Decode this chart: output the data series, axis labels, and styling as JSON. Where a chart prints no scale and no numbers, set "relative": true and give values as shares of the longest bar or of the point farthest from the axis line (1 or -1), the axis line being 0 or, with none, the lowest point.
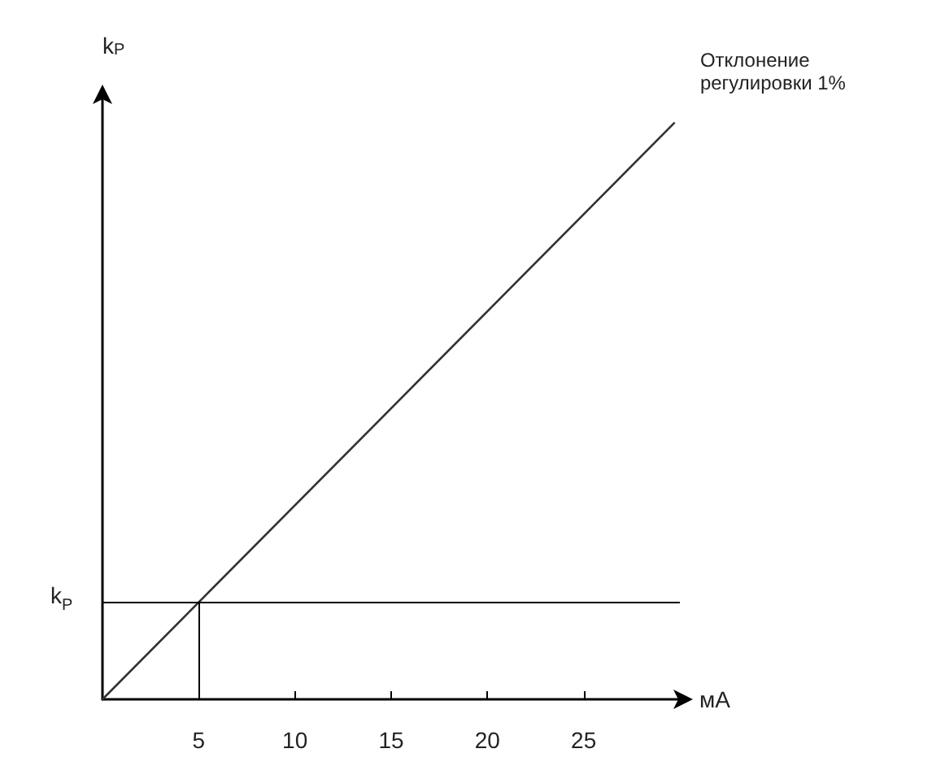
{
  "chart_data": {
    "type": "line",
    "relative": true,
    "ylabel": "k$_{P}$",
    "xlabel": "мА",
    "xlim": [
      0,
      30
    ],
    "xticks": [
      5,
      10,
      15,
      20,
      25
    ],
    "series": [
      {
        "color": "#333333",
        "x": [
          0,
          29.7
        ],
        "values": [
          0,
          1
        ]
      }
    ],
    "ref_lines": [
      {
        "axis": "y",
        "value": 0.17,
        "label": "k$_{P}$",
        "color": "#000000"
      },
      {
        "axis": "x",
        "value": 5,
        "color": "#000000"
      }
    ],
    "annotations": [
      {
        "text": "Отклонение регулировки 1%",
        "x": 29.7,
        "y": 1
      }
    ],
    "grid": false
  }
}
